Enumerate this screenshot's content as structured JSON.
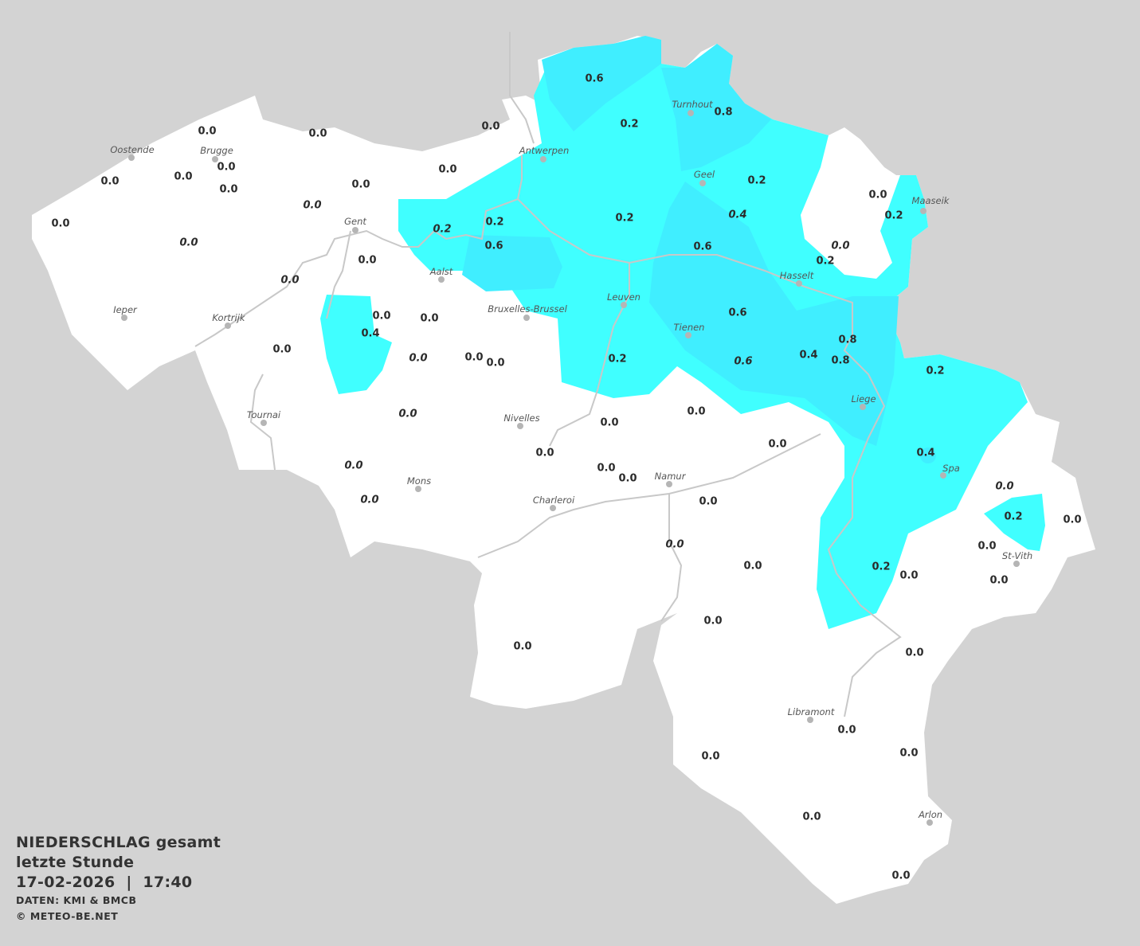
{
  "colors": {
    "background": "#d3d3d3",
    "land": "#ffffff",
    "precip_0_2": "#40ffff",
    "precip_0_4_plus": "#40eeff",
    "rivers": "#c8c8c8"
  },
  "legend": {
    "title": "NIEDERSCHLAG gesamt",
    "subtitle": "letzte Stunde",
    "datetime": "17-02-2026  |  17:40",
    "source": "DATEN: KMI & BMCB",
    "copyright": "© METEO-BE.NET"
  },
  "cities": [
    "Oostende",
    "Brugge",
    "Antwerpen",
    "Turnhout",
    "Geel",
    "Maaseik",
    "Gent",
    "Aalst",
    "Hasselt",
    "Leuven",
    "Bruxelles-Brussel",
    "Ieper",
    "Kortrijk",
    "Tienen",
    "Liege",
    "Tournai",
    "Nivelles",
    "Spa",
    "Mons",
    "Namur",
    "Charleroi",
    "St-Vith",
    "Libramont",
    "Arlon"
  ],
  "stations": [
    {
      "value": "0.6",
      "italic": false
    },
    {
      "value": "0.2",
      "italic": false
    },
    {
      "value": "0.8",
      "italic": false
    },
    {
      "value": "0.0",
      "italic": false
    },
    {
      "value": "0.0",
      "italic": false
    },
    {
      "value": "0.0",
      "italic": false
    },
    {
      "value": "0.0",
      "italic": false
    },
    {
      "value": "0.0",
      "italic": false
    },
    {
      "value": "0.0",
      "italic": false
    },
    {
      "value": "0.0",
      "italic": false
    },
    {
      "value": "0.0",
      "italic": false
    },
    {
      "value": "0.0",
      "italic": false
    },
    {
      "value": "0.0",
      "italic": true
    },
    {
      "value": "0.0",
      "italic": false
    },
    {
      "value": "0.0",
      "italic": true
    },
    {
      "value": "0.2",
      "italic": false
    },
    {
      "value": "0.4",
      "italic": true
    },
    {
      "value": "0.0",
      "italic": false
    },
    {
      "value": "0.2",
      "italic": false
    },
    {
      "value": "0.2",
      "italic": false
    },
    {
      "value": "0.2",
      "italic": true
    },
    {
      "value": "0.2",
      "italic": false
    },
    {
      "value": "0.6",
      "italic": false
    },
    {
      "value": "0.0",
      "italic": true
    },
    {
      "value": "0.6",
      "italic": false
    },
    {
      "value": "0.2",
      "italic": false
    },
    {
      "value": "0.0",
      "italic": false
    },
    {
      "value": "0.0",
      "italic": true
    },
    {
      "value": "0.0",
      "italic": false
    },
    {
      "value": "0.0",
      "italic": false
    },
    {
      "value": "0.4",
      "italic": false
    },
    {
      "value": "0.6",
      "italic": false
    },
    {
      "value": "0.8",
      "italic": false
    },
    {
      "value": "0.0",
      "italic": false
    },
    {
      "value": "0.0",
      "italic": true
    },
    {
      "value": "0.0",
      "italic": false
    },
    {
      "value": "0.0",
      "italic": false
    },
    {
      "value": "0.2",
      "italic": false
    },
    {
      "value": "0.6",
      "italic": true
    },
    {
      "value": "0.4",
      "italic": false
    },
    {
      "value": "0.8",
      "italic": false
    },
    {
      "value": "0.2",
      "italic": false
    },
    {
      "value": "0.0",
      "italic": true
    },
    {
      "value": "0.0",
      "italic": false
    },
    {
      "value": "0.0",
      "italic": false
    },
    {
      "value": "0.0",
      "italic": false
    },
    {
      "value": "0.0",
      "italic": false
    },
    {
      "value": "0.0",
      "italic": true
    },
    {
      "value": "0.0",
      "italic": false
    },
    {
      "value": "0.0",
      "italic": false
    },
    {
      "value": "0.4",
      "italic": false
    },
    {
      "value": "0.0",
      "italic": true
    },
    {
      "value": "0.0",
      "italic": true
    },
    {
      "value": "0.0",
      "italic": false
    },
    {
      "value": "0.2",
      "italic": false
    },
    {
      "value": "0.0",
      "italic": false
    },
    {
      "value": "0.0",
      "italic": true
    },
    {
      "value": "0.0",
      "italic": false
    },
    {
      "value": "0.0",
      "italic": false
    },
    {
      "value": "0.2",
      "italic": false
    },
    {
      "value": "0.0",
      "italic": false
    },
    {
      "value": "0.0",
      "italic": false
    },
    {
      "value": "0.0",
      "italic": false
    },
    {
      "value": "0.0",
      "italic": false
    },
    {
      "value": "0.0",
      "italic": false
    },
    {
      "value": "0.0",
      "italic": false
    },
    {
      "value": "0.0",
      "italic": false
    },
    {
      "value": "0.0",
      "italic": false
    },
    {
      "value": "0.0",
      "italic": false
    },
    {
      "value": "0.0",
      "italic": false
    }
  ]
}
